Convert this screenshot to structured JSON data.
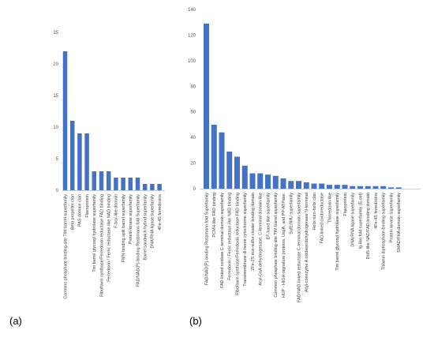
{
  "colors": {
    "bar": "#4472c4",
    "grid": "#d9d9d9",
    "axis": "#bfbfbf"
  },
  "chart_data": [
    {
      "type": "bar",
      "panel_label": "(a)",
      "title": "",
      "xlabel": "",
      "ylabel": "",
      "ylim": [
        0,
        25
      ],
      "yticks": [
        "0",
        "5",
        "10",
        "15",
        "20",
        "25"
      ],
      "grid": false,
      "categories": [
        "Common phosphate binding-site TIM barrel superfamily",
        "Beta propeller clan",
        "PAS domain clan",
        "Flavoprotein",
        "Tim barrel glycosyl hydrolase superfamily",
        "Riboflavin synthase/Ferredoxin reductase FAD binding",
        "Ferredoxin / Ferric reductase-like NAD binding",
        "F-box-like domain",
        "FMN-binding split barrel superfamily",
        "Protein kinase superfamily",
        "FAD/NAD(P)-binding Rossmann fold Superfamily",
        "Barrel sandwich hybrid superfamily",
        "DNA/RNA ligase superfamily",
        "4Fe-4S ferredoxins"
      ],
      "values": [
        22,
        11,
        9,
        9,
        3,
        3,
        3,
        2,
        2,
        2,
        2,
        1,
        1,
        1
      ]
    },
    {
      "type": "bar",
      "panel_label": "(b)",
      "title": "",
      "xlabel": "",
      "ylabel": "",
      "ylim": [
        0,
        140
      ],
      "yticks": [
        "0",
        "20",
        "40",
        "60",
        "80",
        "100",
        "120",
        "140"
      ],
      "grid": false,
      "categories": [
        "FAD/NAD(P)-binding Rossmann fold Superfamily",
        "PCMH-like FAD binding",
        "FAD-linked oxidase C-terminal domain superfamily",
        "Ferredoxin / Ferric reductase-like NAD binding",
        "Riboflavin synthase/Ferredoxin reductase FAD binding",
        "Transmembrane di-heme cytochrome superfamily",
        "2Fe-2S iron-sulfur cluster binding domain",
        "Acyl-CoA dehydrogenase, C-terminal domain-like",
        "EF-hand like superfamily",
        "Common phosphate binding-site TIM barrel superfamily",
        "HUP - HIGH-signature proteins, UspA, and PP-ATPase.",
        "SufE/NifU superfamily",
        "FAD/NAD-linked reductase C-terminal domain superfamily",
        "Acyl-coenzyme A oxidase/dehydrogenase N-terminal",
        "Helix-turn-helix clan",
        "FAD-linked oxidoreductase",
        "Thioredoxin-like",
        "Tim barrel glycosyl hydrolase superfamily",
        "Flavoprotein",
        "DNA/RNA ligase superfamily",
        "Ig-like fold superfamily (E-set)",
        "DHS-like NAD/FAD-binding domain",
        "4Fe-4S ferredoxins",
        "Thiamin diphosphate-binding superfamily",
        "Protein kinase superfamily",
        "SMAD/FHA domain superfamily"
      ],
      "values": [
        129,
        50,
        44,
        29,
        25,
        18,
        12,
        12,
        11,
        10,
        8,
        6,
        6,
        5,
        4,
        4,
        3,
        3,
        3,
        2,
        2,
        2,
        2,
        2,
        1,
        1
      ]
    }
  ]
}
